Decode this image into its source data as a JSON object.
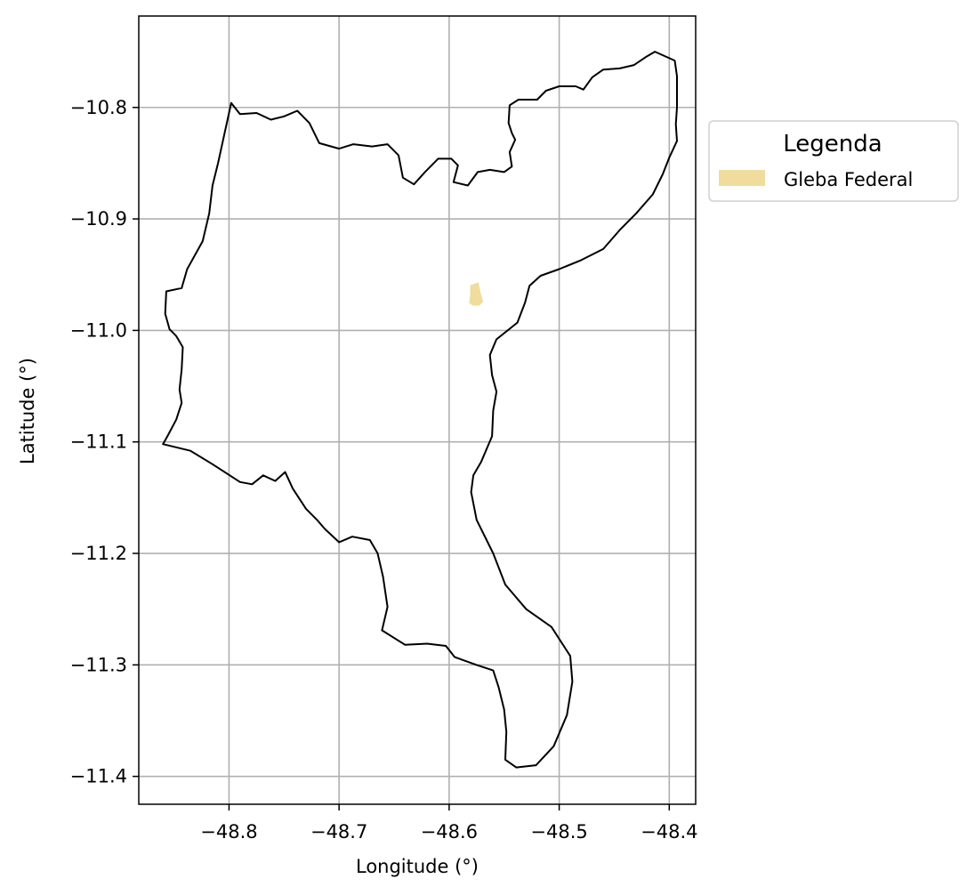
{
  "map": {
    "xlabel": "Longitude (°)",
    "ylabel": "Latitude (°)",
    "x_ticks": [
      {
        "value": -48.8,
        "label": "−48.8"
      },
      {
        "value": -48.7,
        "label": "−48.7"
      },
      {
        "value": -48.6,
        "label": "−48.6"
      },
      {
        "value": -48.5,
        "label": "−48.5"
      },
      {
        "value": -48.4,
        "label": "−48.4"
      }
    ],
    "y_ticks": [
      {
        "value": -10.8,
        "label": "−10.8"
      },
      {
        "value": -10.9,
        "label": "−10.9"
      },
      {
        "value": -11.0,
        "label": "−11.0"
      },
      {
        "value": -11.1,
        "label": "−11.1"
      },
      {
        "value": -11.2,
        "label": "−11.2"
      },
      {
        "value": -11.3,
        "label": "−11.3"
      },
      {
        "value": -11.4,
        "label": "−11.4"
      }
    ],
    "xlim": [
      -48.882,
      -48.376
    ],
    "ylim": [
      -11.425,
      -10.718
    ],
    "grid": true,
    "legend": {
      "title": "Legenda",
      "entries": [
        {
          "label": "Gleba Federal",
          "color": "#f0dc9c"
        }
      ],
      "placement": "outside-right-top"
    },
    "colors": {
      "boundary": "#000000",
      "gleba_fill": "#f0dc9c",
      "grid": "#b0b0b0"
    },
    "boundary_lonlat": [
      [
        -48.413,
        -10.75
      ],
      [
        -48.395,
        -10.758
      ],
      [
        -48.393,
        -10.772
      ],
      [
        -48.393,
        -10.8
      ],
      [
        -48.394,
        -10.815
      ],
      [
        -48.393,
        -10.83
      ],
      [
        -48.4,
        -10.845
      ],
      [
        -48.406,
        -10.86
      ],
      [
        -48.415,
        -10.878
      ],
      [
        -48.43,
        -10.895
      ],
      [
        -48.445,
        -10.91
      ],
      [
        -48.46,
        -10.927
      ],
      [
        -48.48,
        -10.937
      ],
      [
        -48.5,
        -10.945
      ],
      [
        -48.517,
        -10.951
      ],
      [
        -48.527,
        -10.96
      ],
      [
        -48.531,
        -10.975
      ],
      [
        -48.538,
        -10.993
      ],
      [
        -48.557,
        -11.008
      ],
      [
        -48.563,
        -11.022
      ],
      [
        -48.561,
        -11.04
      ],
      [
        -48.557,
        -11.055
      ],
      [
        -48.56,
        -11.072
      ],
      [
        -48.561,
        -11.095
      ],
      [
        -48.571,
        -11.118
      ],
      [
        -48.578,
        -11.13
      ],
      [
        -48.58,
        -11.145
      ],
      [
        -48.575,
        -11.17
      ],
      [
        -48.56,
        -11.2
      ],
      [
        -48.549,
        -11.228
      ],
      [
        -48.53,
        -11.25
      ],
      [
        -48.507,
        -11.266
      ],
      [
        -48.49,
        -11.292
      ],
      [
        -48.488,
        -11.315
      ],
      [
        -48.493,
        -11.345
      ],
      [
        -48.505,
        -11.373
      ],
      [
        -48.521,
        -11.39
      ],
      [
        -48.539,
        -11.392
      ],
      [
        -48.549,
        -11.385
      ],
      [
        -48.548,
        -11.36
      ],
      [
        -48.55,
        -11.34
      ],
      [
        -48.555,
        -11.32
      ],
      [
        -48.56,
        -11.305
      ],
      [
        -48.575,
        -11.3
      ],
      [
        -48.595,
        -11.293
      ],
      [
        -48.603,
        -11.283
      ],
      [
        -48.62,
        -11.281
      ],
      [
        -48.64,
        -11.282
      ],
      [
        -48.661,
        -11.269
      ],
      [
        -48.656,
        -11.248
      ],
      [
        -48.66,
        -11.221
      ],
      [
        -48.665,
        -11.2
      ],
      [
        -48.672,
        -11.188
      ],
      [
        -48.688,
        -11.185
      ],
      [
        -48.7,
        -11.19
      ],
      [
        -48.713,
        -11.178
      ],
      [
        -48.72,
        -11.17
      ],
      [
        -48.73,
        -11.16
      ],
      [
        -48.742,
        -11.142
      ],
      [
        -48.749,
        -11.127
      ],
      [
        -48.758,
        -11.135
      ],
      [
        -48.769,
        -11.13
      ],
      [
        -48.779,
        -11.138
      ],
      [
        -48.79,
        -11.136
      ],
      [
        -48.815,
        -11.12
      ],
      [
        -48.835,
        -11.108
      ],
      [
        -48.86,
        -11.102
      ],
      [
        -48.856,
        -11.095
      ],
      [
        -48.848,
        -11.08
      ],
      [
        -48.843,
        -11.065
      ],
      [
        -48.845,
        -11.053
      ],
      [
        -48.843,
        -11.035
      ],
      [
        -48.842,
        -11.015
      ],
      [
        -48.848,
        -11.005
      ],
      [
        -48.854,
        -10.999
      ],
      [
        -48.858,
        -10.985
      ],
      [
        -48.857,
        -10.965
      ],
      [
        -48.843,
        -10.962
      ],
      [
        -48.838,
        -10.945
      ],
      [
        -48.824,
        -10.92
      ],
      [
        -48.818,
        -10.895
      ],
      [
        -48.815,
        -10.87
      ],
      [
        -48.81,
        -10.85
      ],
      [
        -48.798,
        -10.796
      ],
      [
        -48.79,
        -10.806
      ],
      [
        -48.775,
        -10.805
      ],
      [
        -48.762,
        -10.811
      ],
      [
        -48.75,
        -10.808
      ],
      [
        -48.738,
        -10.803
      ],
      [
        -48.727,
        -10.814
      ],
      [
        -48.718,
        -10.832
      ],
      [
        -48.7,
        -10.837
      ],
      [
        -48.687,
        -10.833
      ],
      [
        -48.67,
        -10.835
      ],
      [
        -48.656,
        -10.833
      ],
      [
        -48.646,
        -10.843
      ],
      [
        -48.642,
        -10.863
      ],
      [
        -48.632,
        -10.869
      ],
      [
        -48.622,
        -10.858
      ],
      [
        -48.61,
        -10.846
      ],
      [
        -48.598,
        -10.846
      ],
      [
        -48.592,
        -10.852
      ],
      [
        -48.596,
        -10.867
      ],
      [
        -48.583,
        -10.87
      ],
      [
        -48.574,
        -10.858
      ],
      [
        -48.563,
        -10.856
      ],
      [
        -48.55,
        -10.858
      ],
      [
        -48.543,
        -10.853
      ],
      [
        -48.545,
        -10.84
      ],
      [
        -48.54,
        -10.829
      ],
      [
        -48.543,
        -10.823
      ],
      [
        -48.546,
        -10.814
      ],
      [
        -48.545,
        -10.798
      ],
      [
        -48.537,
        -10.793
      ],
      [
        -48.52,
        -10.793
      ],
      [
        -48.512,
        -10.785
      ],
      [
        -48.5,
        -10.781
      ],
      [
        -48.485,
        -10.781
      ],
      [
        -48.478,
        -10.784
      ],
      [
        -48.47,
        -10.773
      ],
      [
        -48.46,
        -10.766
      ],
      [
        -48.445,
        -10.765
      ],
      [
        -48.432,
        -10.762
      ],
      [
        -48.42,
        -10.754
      ],
      [
        -48.413,
        -10.75
      ]
    ],
    "gleba_lonlat": [
      [
        -48.58,
        -10.96
      ],
      [
        -48.574,
        -10.958
      ],
      [
        -48.572,
        -10.967
      ],
      [
        -48.57,
        -10.974
      ],
      [
        -48.573,
        -10.977
      ],
      [
        -48.578,
        -10.977
      ],
      [
        -48.581,
        -10.975
      ],
      [
        -48.58,
        -10.968
      ],
      [
        -48.58,
        -10.96
      ]
    ]
  }
}
